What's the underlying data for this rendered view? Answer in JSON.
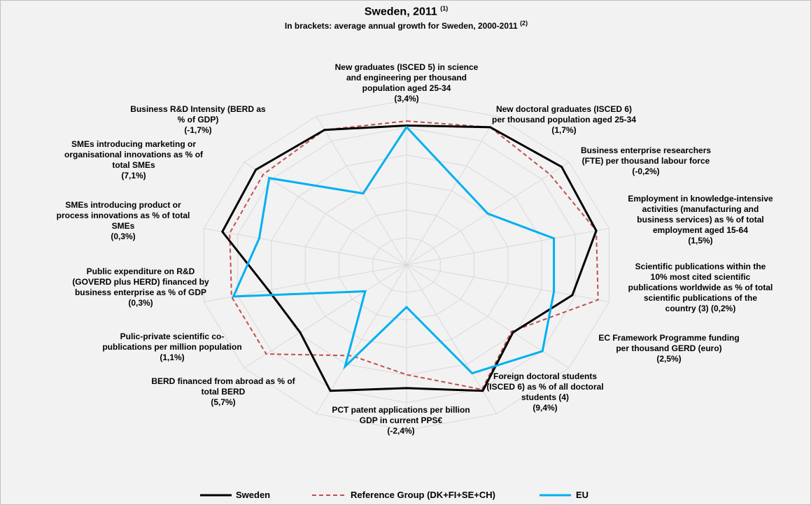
{
  "chart_data": {
    "type": "radar",
    "title": "Sweden, 2011",
    "title_note": "(1)",
    "subtitle": "In brackets: average annual growth for Sweden, 2000-2011",
    "subtitle_note": "(2)",
    "categories": [
      "New graduates (ISCED 5) in science\nand engineering per thousand\npopulation aged 25-34\n(3,4%)",
      "New doctoral graduates (ISCED 6)\nper thousand population aged 25-34\n(1,7%)",
      "Business enterprise researchers\n(FTE) per thousand labour force\n(-0,2%)",
      "Employment in knowledge-intensive\nactivities (manufacturing and\nbusiness services) as % of total\nemployment aged 15-64\n(1,5%)",
      "Scientific publications within the\n10% most cited scientific\npublications worldwide as % of total\nscientific publications of the\ncountry (3) (0,2%)",
      "EC Framework Programme funding\nper thousand GERD (euro)\n(2,5%)",
      "Foreign doctoral students\n(ISCED 6) as % of all doctoral\nstudents (4)\n(9,4%)",
      "PCT patent applications per billion\nGDP in current PPS€\n(-2,4%)",
      "BERD financed from abroad as % of\ntotal BERD\n(5,7%)",
      "Pulic-private scientific co-\npublications per million population\n(1,1%)",
      "Public expenditure on R&D\n(GOVERD plus HERD) financed by\nbusiness enterprise as % of GDP\n(0,3%)",
      "SMEs introducing product or\nprocess innovations as % of total\nSMEs\n(0,3%)",
      "SMEs introducing marketing or\norganisational innovations as % of\ntotal SMEs\n(7,1%)",
      "Business R&D Intensity (BERD as\n% of GDP)\n(-1,7%)"
    ],
    "series": [
      {
        "name": "Sweden",
        "color": "#000000",
        "dash": false,
        "values": [
          0.93,
          1.02,
          1.05,
          1.03,
          0.9,
          0.72,
          0.93,
          0.82,
          0.93,
          0.72,
          0.75,
          1.0,
          1.02,
          1.0
        ]
      },
      {
        "name": "Reference Group (DK+FI+SE+CH)",
        "color": "#c0504d",
        "dash": true,
        "values": [
          0.96,
          1.02,
          0.97,
          1.03,
          1.04,
          0.71,
          0.92,
          0.73,
          0.67,
          0.95,
          0.95,
          0.96,
          0.97,
          1.0
        ]
      },
      {
        "name": "EU",
        "color": "#00b0f0",
        "dash": false,
        "values": [
          0.92,
          0.62,
          0.55,
          0.8,
          0.8,
          0.92,
          0.8,
          0.28,
          0.75,
          0.28,
          0.94,
          0.8,
          0.93,
          0.53
        ]
      }
    ],
    "ylim": [
      0,
      1.1
    ],
    "grid": true
  }
}
